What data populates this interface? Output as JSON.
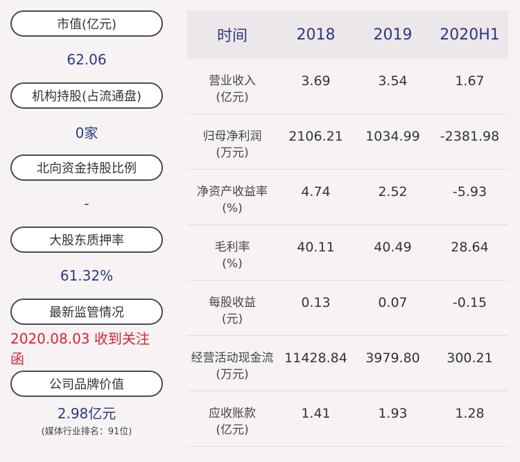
{
  "summary": [
    {
      "label": "市值(亿元)",
      "value": "62.06",
      "sub": ""
    },
    {
      "label": "机构持股(占流通盘)",
      "value": "0家",
      "sub": ""
    },
    {
      "label": "北向资金持股比例",
      "value": "-",
      "sub": ""
    },
    {
      "label": "大股东质押率",
      "value": "61.32%",
      "sub": ""
    },
    {
      "label": "最新监管情况",
      "value": "2020.08.03 收到关注函",
      "sub": ""
    },
    {
      "label": "公司品牌价值",
      "value": "2.98亿元",
      "sub": "(媒体行业排名：91位)"
    }
  ],
  "table": {
    "headers": [
      "时间",
      "2018",
      "2019",
      "2020H1"
    ],
    "rows": [
      {
        "name": "营业收入",
        "unit": "(亿元)",
        "values": [
          "3.69",
          "3.54",
          "1.67"
        ]
      },
      {
        "name": "归母净利润",
        "unit": "(万元)",
        "values": [
          "2106.21",
          "1034.99",
          "-2381.98"
        ]
      },
      {
        "name": "净资产收益率",
        "unit": "(%)",
        "values": [
          "4.74",
          "2.52",
          "-5.93"
        ]
      },
      {
        "name": "毛利率",
        "unit": "(%)",
        "values": [
          "40.11",
          "40.49",
          "28.64"
        ]
      },
      {
        "name": "每股收益",
        "unit": "(元)",
        "values": [
          "0.13",
          "0.07",
          "-0.15"
        ]
      },
      {
        "name": "经营活动现金流",
        "unit": "(万元)",
        "values": [
          "11428.84",
          "3979.80",
          "300.21"
        ]
      },
      {
        "name": "应收账款",
        "unit": "(亿元)",
        "values": [
          "1.41",
          "1.93",
          "1.28"
        ]
      }
    ]
  },
  "colors": {
    "value": "#2b3a7c",
    "alert": "#d9262b"
  }
}
